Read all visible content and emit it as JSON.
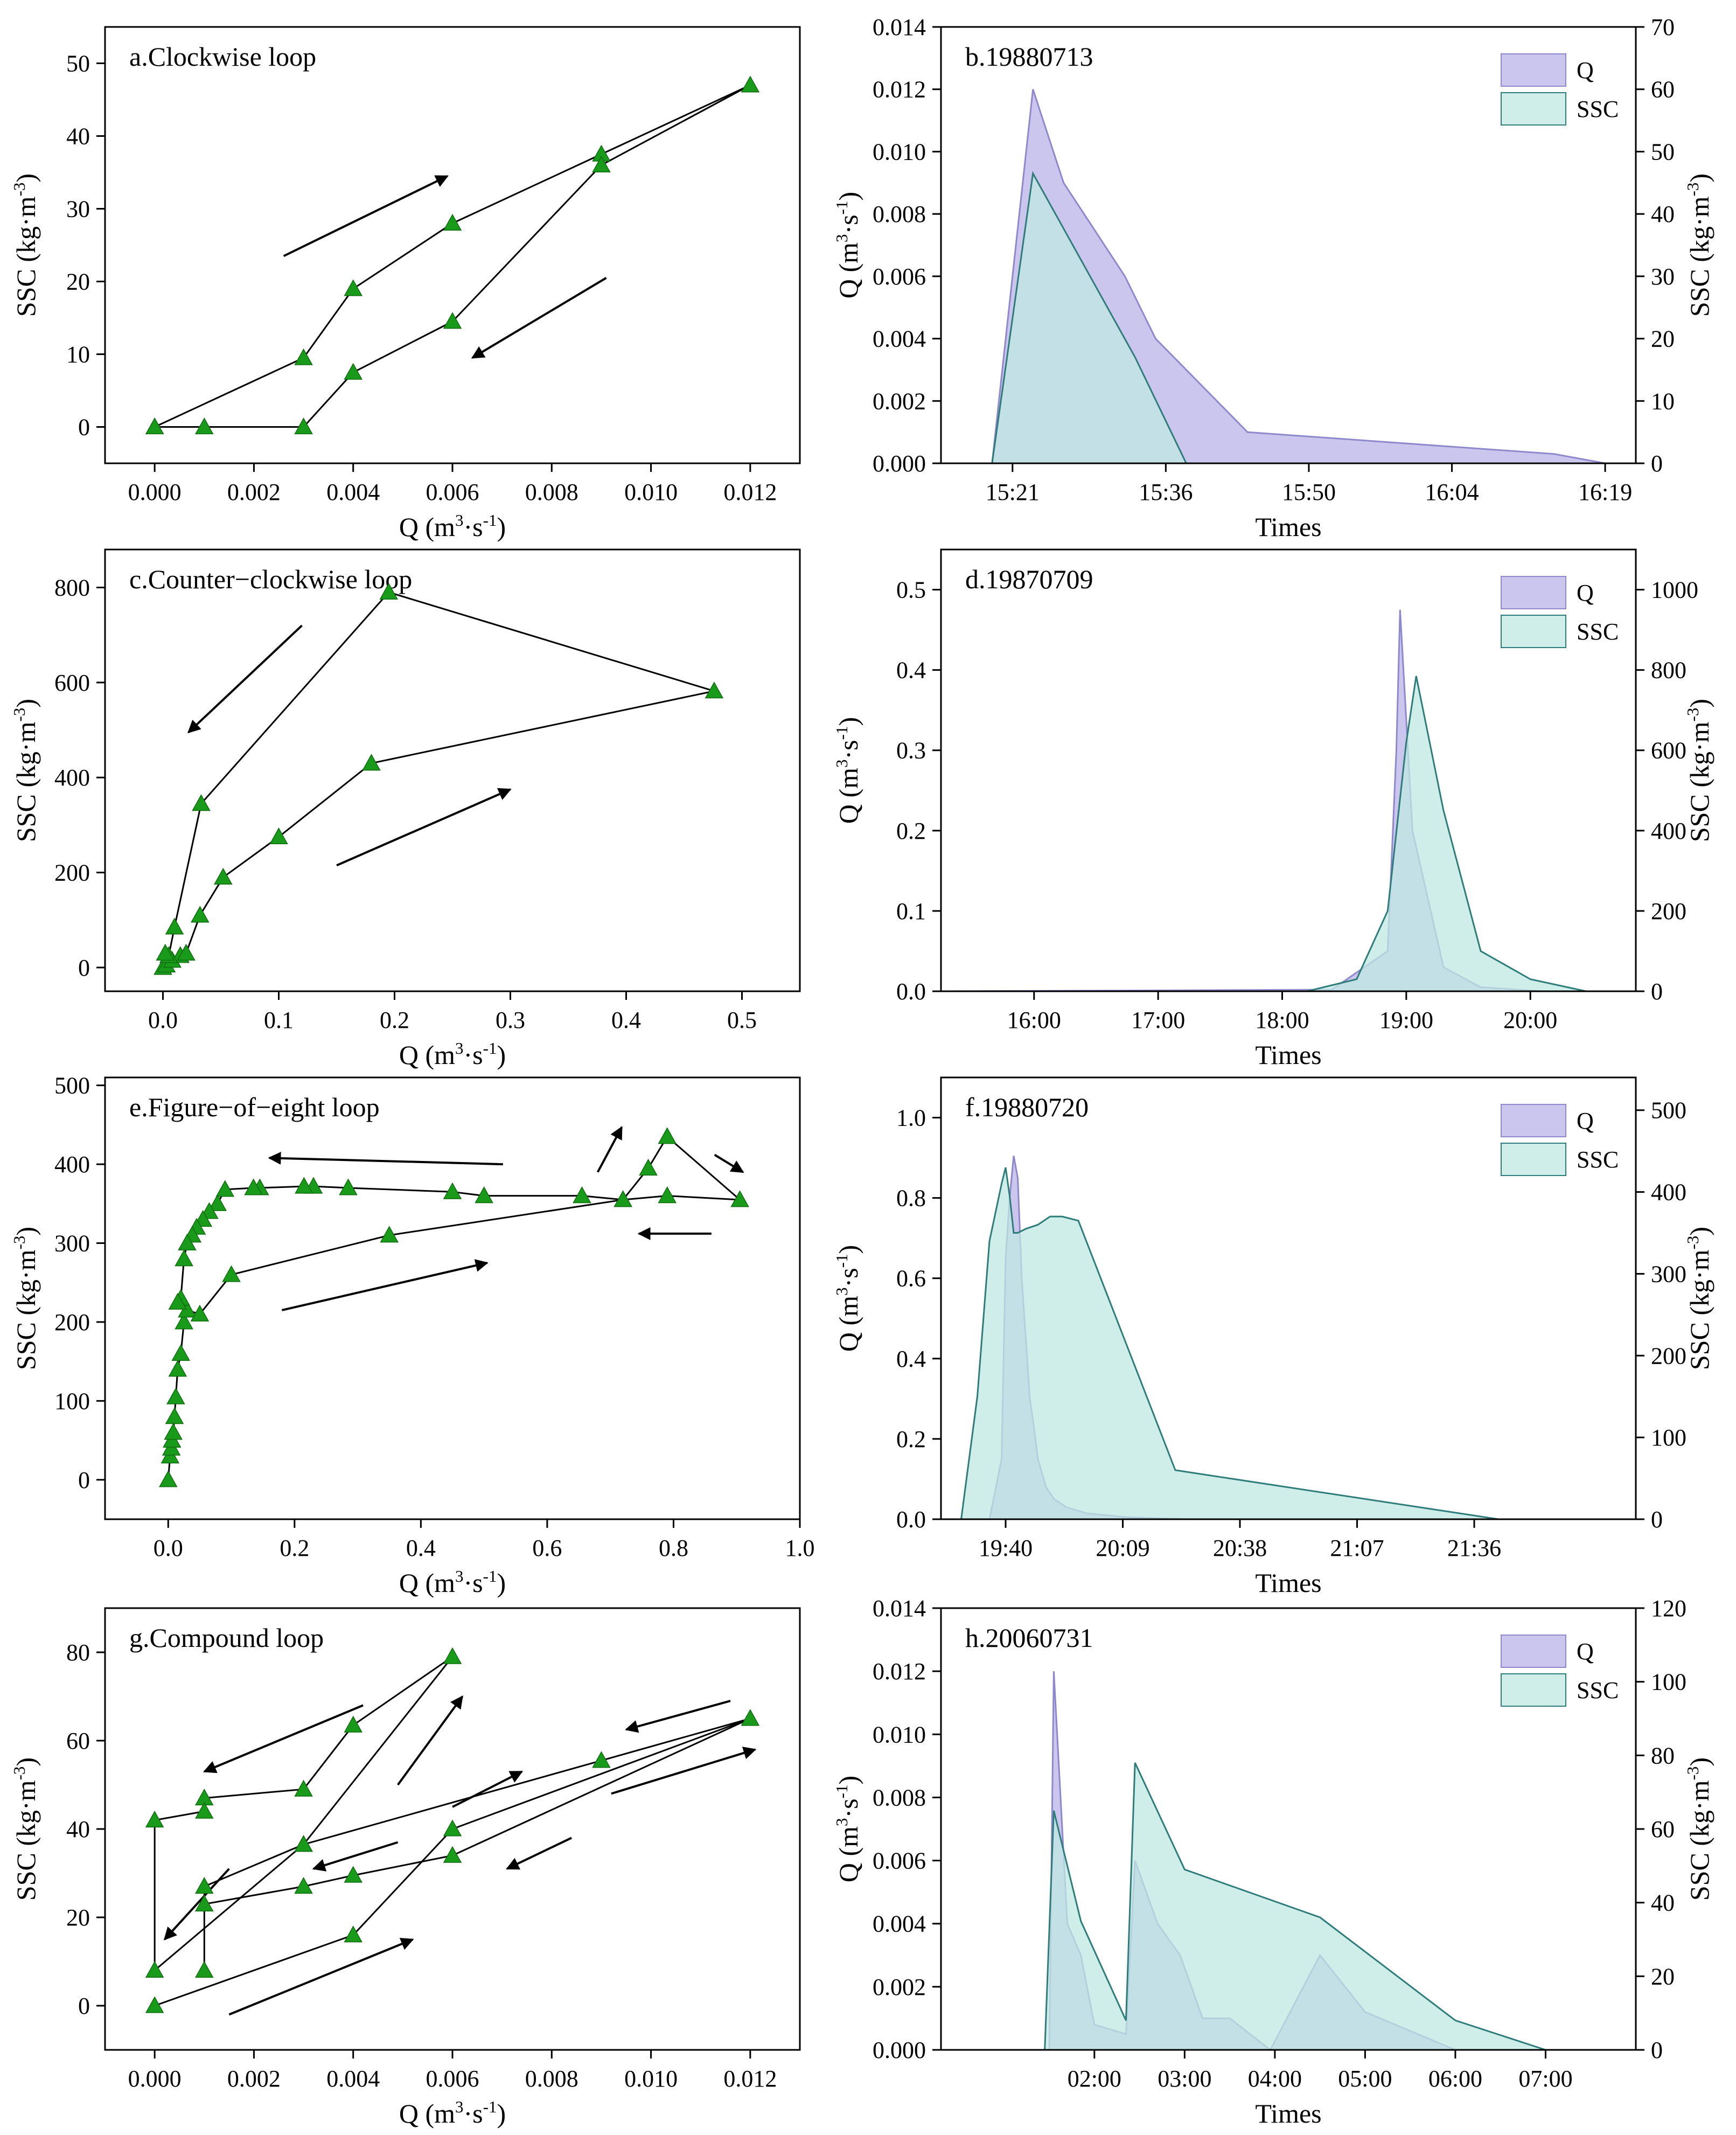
{
  "chart_data": [
    {
      "id": "a",
      "type": "scatter",
      "title": "a.Clockwise loop",
      "xlabel": "Q (m³·s⁻¹)",
      "ylabel": "SSC (kg·m⁻³)",
      "xlim": [
        -0.001,
        0.013
      ],
      "ylim": [
        -5,
        55
      ],
      "xticks": [
        0,
        0.002,
        0.004,
        0.006,
        0.008,
        0.01,
        0.012
      ],
      "xtick_labels": [
        "0.000",
        "0.002",
        "0.004",
        "0.006",
        "0.008",
        "0.010",
        "0.012"
      ],
      "yticks": [
        0,
        10,
        20,
        30,
        40,
        50
      ],
      "ytick_labels": [
        "0",
        "10",
        "20",
        "30",
        "40",
        "50"
      ],
      "x": [
        0.0,
        0.003,
        0.004,
        0.006,
        0.009,
        0.012,
        0.009,
        0.006,
        0.004,
        0.003,
        0.001,
        0.0
      ],
      "y": [
        0,
        9.5,
        19,
        28,
        37.5,
        47,
        36,
        14.5,
        7.5,
        0,
        0,
        0
      ],
      "arrows": [
        [
          0.0026,
          23.5,
          0.0059,
          34.5
        ],
        [
          0.0091,
          20.5,
          0.0064,
          9.5
        ]
      ],
      "marker_color": "#1a9a1a"
    },
    {
      "id": "b",
      "type": "area",
      "title": "b.19880713",
      "xlabel": "Times",
      "ylabel": "Q (m³·s⁻¹)",
      "y2label": "SSC (kg·m⁻³)",
      "xlim": [
        0,
        68
      ],
      "ylim": [
        0,
        0.014
      ],
      "y2lim": [
        0,
        70
      ],
      "xticks": [
        7,
        22,
        36,
        50,
        65
      ],
      "xtick_labels": [
        "15:21",
        "15:36",
        "15:50",
        "16:04",
        "16:19"
      ],
      "yticks": [
        0,
        0.002,
        0.004,
        0.006,
        0.008,
        0.01,
        0.012,
        0.014
      ],
      "ytick_labels": [
        "0.000",
        "0.002",
        "0.004",
        "0.006",
        "0.008",
        "0.010",
        "0.012",
        "0.014"
      ],
      "y2ticks": [
        0,
        10,
        20,
        30,
        40,
        50,
        60,
        70
      ],
      "y2tick_labels": [
        "0",
        "10",
        "20",
        "30",
        "40",
        "50",
        "60",
        "70"
      ],
      "legend": [
        "Q",
        "SSC"
      ],
      "series": [
        {
          "name": "Q",
          "axis": "left",
          "color": "#b9b3e8",
          "edge": "#8e88cc",
          "x": [
            5,
            6,
            9,
            12,
            18,
            21,
            24,
            30,
            60,
            65
          ],
          "y": [
            0,
            0.003,
            0.012,
            0.009,
            0.006,
            0.004,
            0.003,
            0.001,
            0.0003,
            0
          ]
        },
        {
          "name": "SSC",
          "axis": "right",
          "color": "#bfe8e2",
          "edge": "#2e7d7a",
          "x": [
            5,
            9,
            19,
            24
          ],
          "y": [
            0,
            46.5,
            17,
            0
          ]
        }
      ]
    },
    {
      "id": "c",
      "type": "scatter",
      "title": "c.Counter−clockwise loop",
      "xlabel": "Q (m³·s⁻¹)",
      "ylabel": "SSC (kg·m⁻³)",
      "xlim": [
        -0.05,
        0.55
      ],
      "ylim": [
        -50,
        880
      ],
      "xticks": [
        0,
        0.1,
        0.2,
        0.3,
        0.4,
        0.5
      ],
      "xtick_labels": [
        "0.0",
        "0.1",
        "0.2",
        "0.3",
        "0.4",
        "0.5"
      ],
      "yticks": [
        0,
        200,
        400,
        600,
        800
      ],
      "ytick_labels": [
        "0",
        "200",
        "400",
        "600",
        "800"
      ],
      "x": [
        0.0,
        0.003,
        0.008,
        0.015,
        0.02,
        0.032,
        0.052,
        0.1,
        0.18,
        0.476,
        0.195,
        0.033,
        0.01,
        0.005,
        0.002
      ],
      "y": [
        0,
        5,
        15,
        25,
        30,
        110,
        190,
        275,
        430,
        582,
        790,
        345,
        85,
        25,
        30
      ],
      "arrows": [
        [
          0.12,
          720,
          0.022,
          495
        ],
        [
          0.15,
          215,
          0.3,
          375
        ]
      ],
      "marker_color": "#1a9a1a"
    },
    {
      "id": "d",
      "type": "area",
      "title": "d.19870709",
      "xlabel": "Times",
      "ylabel": "Q (m³·s⁻¹)",
      "y2label": "SSC (kg·m⁻³)",
      "xlim": [
        15.25,
        20.85
      ],
      "ylim": [
        0,
        0.55
      ],
      "y2lim": [
        0,
        1100
      ],
      "xticks": [
        16,
        17,
        18,
        19,
        20
      ],
      "xtick_labels": [
        "16:00",
        "17:00",
        "18:00",
        "19:00",
        "20:00"
      ],
      "yticks": [
        0,
        0.1,
        0.2,
        0.3,
        0.4,
        0.5
      ],
      "ytick_labels": [
        "0.0",
        "0.1",
        "0.2",
        "0.3",
        "0.4",
        "0.5"
      ],
      "y2ticks": [
        0,
        200,
        400,
        600,
        800,
        1000
      ],
      "y2tick_labels": [
        "0",
        "200",
        "400",
        "600",
        "800",
        "1000"
      ],
      "legend": [
        "Q",
        "SSC"
      ],
      "series": [
        {
          "name": "Q",
          "axis": "left",
          "color": "#b9b3e8",
          "edge": "#8e88cc",
          "x": [
            15.3,
            18.4,
            18.85,
            18.92,
            18.95,
            19.05,
            19.3,
            19.6,
            20.1
          ],
          "y": [
            0,
            0.002,
            0.05,
            0.3,
            0.475,
            0.2,
            0.03,
            0.005,
            0
          ]
        },
        {
          "name": "SSC",
          "axis": "right",
          "color": "#bfe8e2",
          "edge": "#2e7d7a",
          "x": [
            16.0,
            18.2,
            18.6,
            18.85,
            19.0,
            19.08,
            19.3,
            19.6,
            20.0,
            20.45
          ],
          "y": [
            0,
            0,
            30,
            200,
            620,
            785,
            450,
            100,
            30,
            0
          ]
        }
      ]
    },
    {
      "id": "e",
      "type": "scatter",
      "title": "e.Figure−of−eight loop",
      "xlabel": "Q (m³·s⁻¹)",
      "ylabel": "SSC (kg·m⁻³)",
      "xlim": [
        -0.1,
        1.0
      ],
      "ylim": [
        -50,
        510
      ],
      "xticks": [
        0,
        0.2,
        0.4,
        0.6,
        0.8,
        1.0
      ],
      "xtick_labels": [
        "0.0",
        "0.2",
        "0.4",
        "0.6",
        "0.8",
        "1.0"
      ],
      "yticks": [
        0,
        100,
        200,
        300,
        400,
        500
      ],
      "ytick_labels": [
        "0",
        "100",
        "200",
        "300",
        "400",
        "500"
      ],
      "x": [
        0.0,
        0.003,
        0.005,
        0.006,
        0.008,
        0.01,
        0.012,
        0.015,
        0.02,
        0.025,
        0.03,
        0.05,
        0.1,
        0.35,
        0.72,
        0.76,
        0.79,
        0.905,
        0.79,
        0.72,
        0.655,
        0.5,
        0.45,
        0.285,
        0.23,
        0.215,
        0.145,
        0.135,
        0.09,
        0.078,
        0.065,
        0.055,
        0.045,
        0.038,
        0.03,
        0.025,
        0.02,
        0.015
      ],
      "y": [
        0,
        30,
        40,
        50,
        60,
        80,
        105,
        140,
        160,
        200,
        215,
        210,
        260,
        310,
        355,
        395,
        435,
        355,
        360,
        355,
        360,
        360,
        365,
        370,
        372,
        372,
        370,
        370,
        368,
        350,
        340,
        330,
        320,
        310,
        300,
        280,
        230,
        225
      ],
      "arrows": [
        [
          0.18,
          215,
          0.505,
          275
        ],
        [
          0.53,
          400,
          0.16,
          408
        ],
        [
          0.68,
          390,
          0.718,
          447
        ],
        [
          0.865,
          412,
          0.91,
          390
        ],
        [
          0.86,
          312,
          0.745,
          312
        ]
      ],
      "marker_color": "#1a9a1a"
    },
    {
      "id": "f",
      "type": "area",
      "title": "f.19880720",
      "xlabel": "Times",
      "ylabel": "Q (m³·s⁻¹)",
      "y2label": "SSC (kg·m⁻³)",
      "xlim": [
        -16,
        156
      ],
      "ylim": [
        0,
        1.1
      ],
      "y2lim": [
        0,
        540
      ],
      "xticks": [
        0,
        29,
        58,
        87,
        116
      ],
      "xtick_labels": [
        "19:40",
        "20:09",
        "20:38",
        "21:07",
        "21:36"
      ],
      "yticks": [
        0,
        0.2,
        0.4,
        0.6,
        0.8,
        1.0
      ],
      "ytick_labels": [
        "0.0",
        "0.2",
        "0.4",
        "0.6",
        "0.8",
        "1.0"
      ],
      "y2ticks": [
        0,
        100,
        200,
        300,
        400,
        500
      ],
      "y2tick_labels": [
        "0",
        "100",
        "200",
        "300",
        "400",
        "500"
      ],
      "legend": [
        "Q",
        "SSC"
      ],
      "series": [
        {
          "name": "Q",
          "axis": "left",
          "color": "#b9b3e8",
          "edge": "#8e88cc",
          "x": [
            -4,
            -1,
            0,
            1,
            2,
            3,
            4,
            5,
            6,
            7,
            8,
            10,
            12,
            15,
            20,
            30,
            45
          ],
          "y": [
            0,
            0.15,
            0.65,
            0.8,
            0.905,
            0.85,
            0.6,
            0.45,
            0.3,
            0.23,
            0.15,
            0.08,
            0.05,
            0.03,
            0.015,
            0.005,
            0
          ]
        },
        {
          "name": "SSC",
          "axis": "right",
          "color": "#bfe8e2",
          "edge": "#2e7d7a",
          "x": [
            -11,
            -7,
            -4,
            -1,
            0,
            1,
            2,
            3,
            5,
            8,
            11,
            14,
            18,
            42,
            122
          ],
          "y": [
            0,
            150,
            340,
            410,
            430,
            395,
            350,
            350,
            355,
            360,
            370,
            370,
            365,
            60,
            0
          ]
        }
      ]
    },
    {
      "id": "g",
      "type": "scatter",
      "title": "g.Compound loop",
      "xlabel": "Q (m³·s⁻¹)",
      "ylabel": "SSC (kg·m⁻³)",
      "xlim": [
        -0.001,
        0.013
      ],
      "ylim": [
        -10,
        90
      ],
      "xticks": [
        0,
        0.002,
        0.004,
        0.006,
        0.008,
        0.01,
        0.012
      ],
      "xtick_labels": [
        "0.000",
        "0.002",
        "0.004",
        "0.006",
        "0.008",
        "0.010",
        "0.012"
      ],
      "yticks": [
        0,
        20,
        40,
        60,
        80
      ],
      "ytick_labels": [
        "0",
        "20",
        "40",
        "60",
        "80"
      ],
      "x": [
        0.0,
        0.004,
        0.006,
        0.012,
        0.006,
        0.004,
        0.003,
        0.001,
        0.001,
        0.001,
        0.003,
        0.006,
        0.004,
        0.003,
        0.001,
        0.001,
        0.0,
        0.0,
        0.003,
        0.009,
        0.012
      ],
      "y": [
        0,
        16,
        40,
        65,
        34,
        29.5,
        27,
        23,
        8,
        27,
        36.5,
        79,
        63.5,
        49,
        47,
        44,
        42,
        8,
        36.5,
        55.5,
        65
      ],
      "arrows": [
        [
          0.0042,
          68,
          0.001,
          53
        ],
        [
          0.0015,
          31,
          0.0002,
          15
        ],
        [
          0.0049,
          37,
          0.0032,
          31
        ],
        [
          0.0084,
          38,
          0.0071,
          31
        ],
        [
          0.0015,
          -2,
          0.0052,
          15
        ],
        [
          0.0049,
          50,
          0.0062,
          70
        ],
        [
          0.006,
          45,
          0.0074,
          53
        ],
        [
          0.0092,
          48,
          0.0121,
          58
        ],
        [
          0.0116,
          69,
          0.0095,
          62.5
        ]
      ],
      "marker_color": "#1a9a1a"
    },
    {
      "id": "h",
      "type": "area",
      "title": "h.20060731",
      "xlabel": "Times",
      "ylabel": "Q (m³·s⁻¹)",
      "y2label": "SSC (kg·m⁻³)",
      "xlim": [
        0.3,
        8.0
      ],
      "ylim": [
        0,
        0.014
      ],
      "y2lim": [
        0,
        120
      ],
      "xticks": [
        2,
        3,
        4,
        5,
        6,
        7
      ],
      "xtick_labels": [
        "02:00",
        "03:00",
        "04:00",
        "05:00",
        "06:00",
        "07:00"
      ],
      "yticks": [
        0,
        0.002,
        0.004,
        0.006,
        0.008,
        0.01,
        0.012,
        0.014
      ],
      "ytick_labels": [
        "0.000",
        "0.002",
        "0.004",
        "0.006",
        "0.008",
        "0.010",
        "0.012",
        "0.014"
      ],
      "y2ticks": [
        0,
        20,
        40,
        60,
        80,
        100,
        120
      ],
      "y2tick_labels": [
        "0",
        "20",
        "40",
        "60",
        "80",
        "100",
        "120"
      ],
      "legend": [
        "Q",
        "SSC"
      ],
      "series": [
        {
          "name": "Q",
          "axis": "left",
          "color": "#b9b3e8",
          "edge": "#8e88cc",
          "x": [
            1.5,
            1.55,
            1.7,
            1.85,
            2.0,
            2.35,
            2.45,
            2.7,
            2.95,
            3.2,
            3.5,
            3.95,
            4.5,
            5.0,
            6.0
          ],
          "y": [
            0,
            0.012,
            0.004,
            0.003,
            0.0008,
            0.0005,
            0.006,
            0.004,
            0.003,
            0.001,
            0.001,
            0.0,
            0.003,
            0.0012,
            0
          ]
        },
        {
          "name": "SSC",
          "axis": "right",
          "color": "#bfe8e2",
          "edge": "#2e7d7a",
          "x": [
            1.45,
            1.55,
            1.85,
            2.35,
            2.45,
            3.0,
            4.5,
            6.0,
            7.0
          ],
          "y": [
            0,
            65,
            35,
            8,
            78,
            49,
            36,
            8,
            0
          ]
        }
      ]
    }
  ]
}
